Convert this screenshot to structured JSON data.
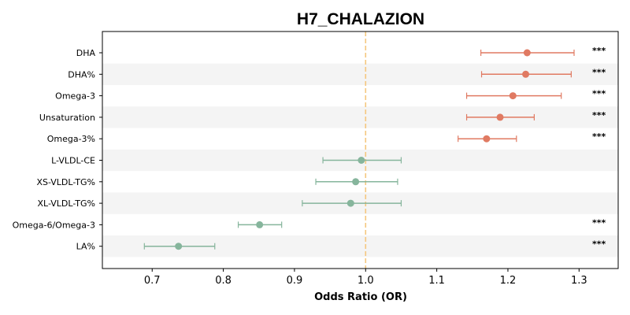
{
  "chart_data": {
    "type": "forest",
    "title": "H7_CHALAZION",
    "xlabel": "Odds Ratio (OR)",
    "ylabel": "",
    "xlim": [
      0.63,
      1.355
    ],
    "xticks": [
      0.7,
      0.8,
      0.9,
      1.0,
      1.1,
      1.2,
      1.3
    ],
    "xtick_labels": [
      "0.7",
      "0.8",
      "0.9",
      "1.0",
      "1.1",
      "1.2",
      "1.3"
    ],
    "reference_line": 1.0,
    "colors": {
      "increased": "#e07a62",
      "decreased": "#86b59c",
      "reference": "#f5c77e",
      "band": "#f4f4f4"
    },
    "rows": [
      {
        "label": "DHA",
        "or": 1.227,
        "lo": 1.162,
        "hi": 1.293,
        "sig": "***",
        "direction": "increased"
      },
      {
        "label": "DHA%",
        "or": 1.225,
        "lo": 1.163,
        "hi": 1.289,
        "sig": "***",
        "direction": "increased"
      },
      {
        "label": "Omega-3",
        "or": 1.207,
        "lo": 1.142,
        "hi": 1.275,
        "sig": "***",
        "direction": "increased"
      },
      {
        "label": "Unsaturation",
        "or": 1.189,
        "lo": 1.142,
        "hi": 1.237,
        "sig": "***",
        "direction": "increased"
      },
      {
        "label": "Omega-3%",
        "or": 1.17,
        "lo": 1.13,
        "hi": 1.212,
        "sig": "***",
        "direction": "increased"
      },
      {
        "label": "L-VLDL-CE",
        "or": 0.994,
        "lo": 0.94,
        "hi": 1.05,
        "sig": "",
        "direction": "decreased"
      },
      {
        "label": "XS-VLDL-TG%",
        "or": 0.986,
        "lo": 0.93,
        "hi": 1.045,
        "sig": "",
        "direction": "decreased"
      },
      {
        "label": "XL-VLDL-TG%",
        "or": 0.979,
        "lo": 0.911,
        "hi": 1.05,
        "sig": "",
        "direction": "decreased"
      },
      {
        "label": "Omega-6/Omega-3",
        "or": 0.851,
        "lo": 0.821,
        "hi": 0.882,
        "sig": "***",
        "direction": "decreased"
      },
      {
        "label": "LA%",
        "or": 0.737,
        "lo": 0.689,
        "hi": 0.788,
        "sig": "***",
        "direction": "decreased"
      }
    ]
  }
}
